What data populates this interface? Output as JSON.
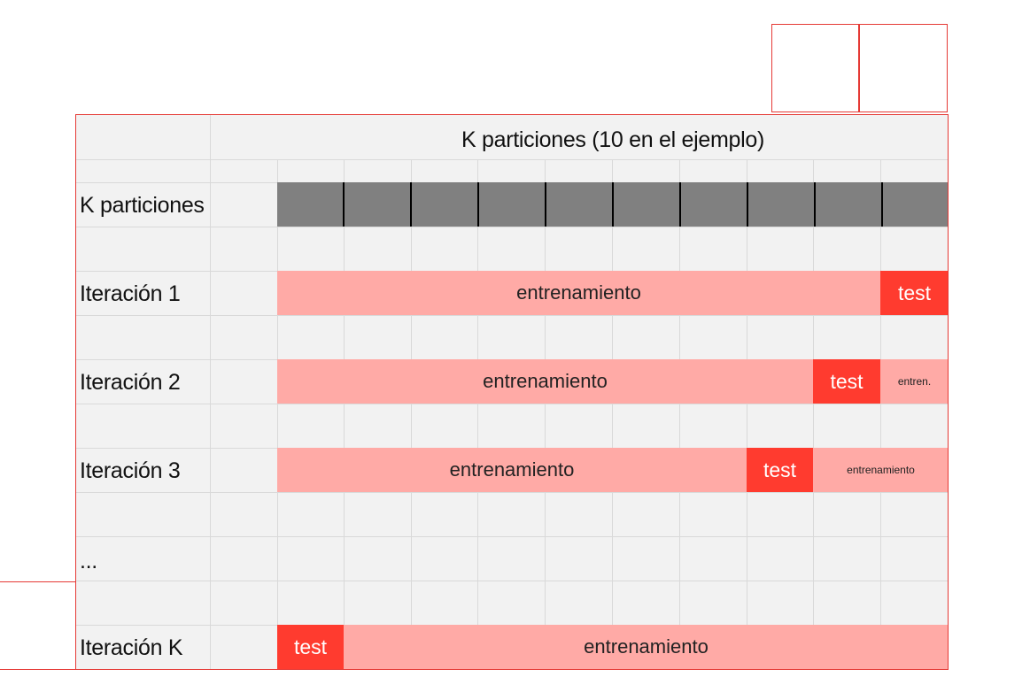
{
  "header": {
    "title": "K particiones (10 en el ejemplo)"
  },
  "partitions": {
    "label": "K particiones",
    "count": 10
  },
  "rows": [
    {
      "label": "Iteración 1",
      "segments": [
        {
          "kind": "train",
          "text": "entrenamiento"
        },
        {
          "kind": "test",
          "text": "test"
        }
      ]
    },
    {
      "label": "Iteración 2",
      "segments": [
        {
          "kind": "train",
          "text": "entrenamiento"
        },
        {
          "kind": "test",
          "text": "test"
        },
        {
          "kind": "train",
          "text": "entren."
        }
      ]
    },
    {
      "label": "Iteración 3",
      "segments": [
        {
          "kind": "train",
          "text": "entrenamiento"
        },
        {
          "kind": "test",
          "text": "test"
        },
        {
          "kind": "train",
          "text": "entrenamiento"
        }
      ]
    },
    {
      "label": "..."
    },
    {
      "label": "Iteración K",
      "segments": [
        {
          "kind": "test",
          "text": "test"
        },
        {
          "kind": "train",
          "text": "entrenamiento"
        }
      ]
    }
  ],
  "colors": {
    "train": "#ffaaa6",
    "test": "#ff3b2f",
    "partition": "#808080",
    "frame": "#e53935"
  }
}
